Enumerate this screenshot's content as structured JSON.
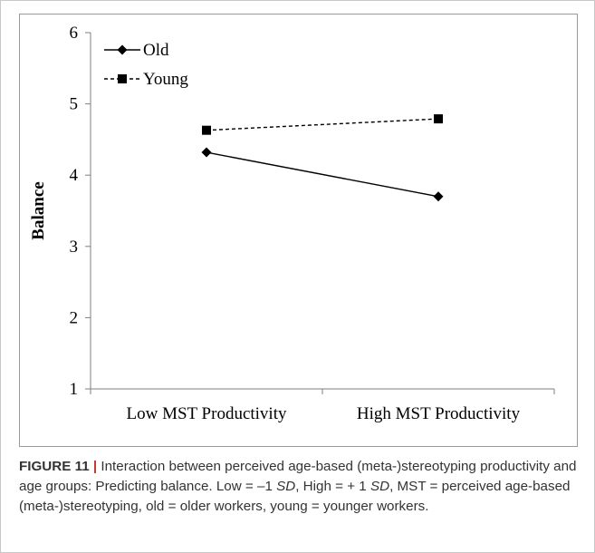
{
  "chart_data": {
    "type": "line",
    "categories": [
      "Low MST Productivity",
      "High MST Productivity"
    ],
    "series": [
      {
        "name": "Old",
        "values": [
          4.32,
          3.7
        ],
        "style": "solid",
        "marker": "diamond",
        "color": "#000000"
      },
      {
        "name": "Young",
        "values": [
          4.63,
          4.79
        ],
        "style": "dashed",
        "marker": "square",
        "color": "#000000"
      }
    ],
    "title": "",
    "xlabel": "",
    "ylabel": "Balance",
    "ylim": [
      1,
      6
    ],
    "yticks": [
      "1",
      "2",
      "3",
      "4",
      "5",
      "6"
    ],
    "grid": false,
    "legend_position": "top-left"
  },
  "caption": {
    "label": "FIGURE 11",
    "separator": "|",
    "segments": [
      {
        "text": " Interaction between perceived age-based (meta-)stereotyping productivity and age groups: Predicting balance. Low = –1 ",
        "italic": false
      },
      {
        "text": "SD",
        "italic": true
      },
      {
        "text": ", High = + 1 ",
        "italic": false
      },
      {
        "text": "SD",
        "italic": true
      },
      {
        "text": ", MST = perceived age-based (meta-)stereotyping, old = older workers, young = younger workers.",
        "italic": false
      }
    ]
  }
}
